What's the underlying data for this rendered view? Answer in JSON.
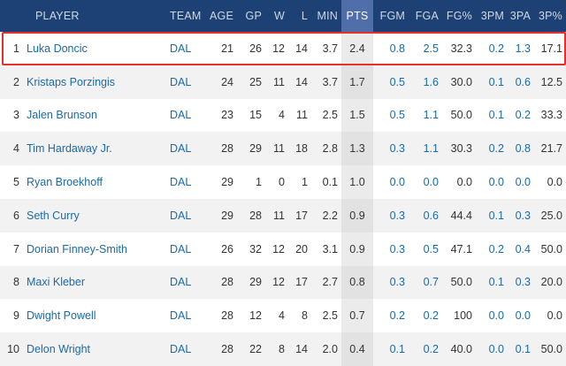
{
  "headers": {
    "rank": "",
    "player": "PLAYER",
    "team": "TEAM",
    "age": "AGE",
    "gp": "GP",
    "w": "W",
    "l": "L",
    "min": "MIN",
    "pts": "PTS",
    "fgm": "FGM",
    "fga": "FGA",
    "fgpct": "FG%",
    "tpm": "3PM",
    "tpa": "3PA",
    "tppct": "3P%"
  },
  "rows": [
    {
      "rank": "1",
      "player": "Luka Doncic",
      "team": "DAL",
      "age": "21",
      "gp": "26",
      "w": "12",
      "l": "14",
      "min": "3.7",
      "pts": "2.4",
      "fgm": "0.8",
      "fga": "2.5",
      "fgpct": "32.3",
      "tpm": "0.2",
      "tpa": "1.3",
      "tppct": "17.1"
    },
    {
      "rank": "2",
      "player": "Kristaps Porzingis",
      "team": "DAL",
      "age": "24",
      "gp": "25",
      "w": "11",
      "l": "14",
      "min": "3.7",
      "pts": "1.7",
      "fgm": "0.5",
      "fga": "1.6",
      "fgpct": "30.0",
      "tpm": "0.1",
      "tpa": "0.6",
      "tppct": "12.5"
    },
    {
      "rank": "3",
      "player": "Jalen Brunson",
      "team": "DAL",
      "age": "23",
      "gp": "15",
      "w": "4",
      "l": "11",
      "min": "2.5",
      "pts": "1.5",
      "fgm": "0.5",
      "fga": "1.1",
      "fgpct": "50.0",
      "tpm": "0.1",
      "tpa": "0.2",
      "tppct": "33.3"
    },
    {
      "rank": "4",
      "player": "Tim Hardaway Jr.",
      "team": "DAL",
      "age": "28",
      "gp": "29",
      "w": "11",
      "l": "18",
      "min": "2.8",
      "pts": "1.3",
      "fgm": "0.3",
      "fga": "1.1",
      "fgpct": "30.3",
      "tpm": "0.2",
      "tpa": "0.8",
      "tppct": "21.7"
    },
    {
      "rank": "5",
      "player": "Ryan Broekhoff",
      "team": "DAL",
      "age": "29",
      "gp": "1",
      "w": "0",
      "l": "1",
      "min": "0.1",
      "pts": "1.0",
      "fgm": "0.0",
      "fga": "0.0",
      "fgpct": "0.0",
      "tpm": "0.0",
      "tpa": "0.0",
      "tppct": "0.0"
    },
    {
      "rank": "6",
      "player": "Seth Curry",
      "team": "DAL",
      "age": "29",
      "gp": "28",
      "w": "11",
      "l": "17",
      "min": "2.2",
      "pts": "0.9",
      "fgm": "0.3",
      "fga": "0.6",
      "fgpct": "44.4",
      "tpm": "0.1",
      "tpa": "0.3",
      "tppct": "25.0"
    },
    {
      "rank": "7",
      "player": "Dorian Finney-Smith",
      "team": "DAL",
      "age": "26",
      "gp": "32",
      "w": "12",
      "l": "20",
      "min": "3.1",
      "pts": "0.9",
      "fgm": "0.3",
      "fga": "0.5",
      "fgpct": "47.1",
      "tpm": "0.2",
      "tpa": "0.4",
      "tppct": "50.0"
    },
    {
      "rank": "8",
      "player": "Maxi Kleber",
      "team": "DAL",
      "age": "28",
      "gp": "29",
      "w": "12",
      "l": "17",
      "min": "2.7",
      "pts": "0.8",
      "fgm": "0.3",
      "fga": "0.7",
      "fgpct": "50.0",
      "tpm": "0.1",
      "tpa": "0.3",
      "tppct": "20.0"
    },
    {
      "rank": "9",
      "player": "Dwight Powell",
      "team": "DAL",
      "age": "28",
      "gp": "12",
      "w": "4",
      "l": "8",
      "min": "2.5",
      "pts": "0.7",
      "fgm": "0.2",
      "fga": "0.2",
      "fgpct": "100",
      "tpm": "0.0",
      "tpa": "0.0",
      "tppct": "0.0"
    },
    {
      "rank": "10",
      "player": "Delon Wright",
      "team": "DAL",
      "age": "28",
      "gp": "22",
      "w": "8",
      "l": "14",
      "min": "2.0",
      "pts": "0.4",
      "fgm": "0.1",
      "fga": "0.2",
      "fgpct": "40.0",
      "tpm": "0.0",
      "tpa": "0.1",
      "tppct": "50.0"
    }
  ],
  "colors": {
    "header_bg": "#1d4174",
    "pts_header_bg": "#4f6eaa",
    "link": "#1a6aa8",
    "highlight": "#e5312b"
  }
}
